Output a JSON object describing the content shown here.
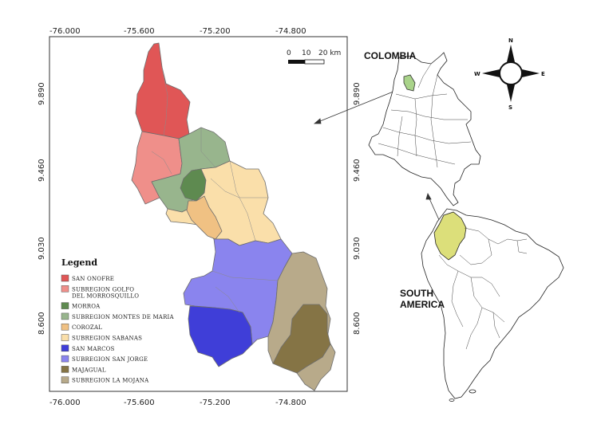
{
  "map": {
    "x_ticks": [
      "-76.000",
      "-75.600",
      "-75.200",
      "-74.800"
    ],
    "y_ticks": [
      "9.890",
      "9.460",
      "9.030",
      "8.600"
    ],
    "scale_bar": {
      "labels": [
        "0",
        "10",
        "20 km"
      ]
    },
    "legend": {
      "title": "Legend",
      "items": [
        {
          "label": "SAN ONOFRE",
          "color": "#e05656"
        },
        {
          "label": "SUBREGION GOLFO",
          "label2": "DEL MORROSQUILLO",
          "color": "#ef8f8a"
        },
        {
          "label": "MORROA",
          "color": "#5e8a50"
        },
        {
          "label": "SUBREGION MONTES DE MARIA",
          "color": "#98b58d"
        },
        {
          "label": "COROZAL",
          "color": "#f0c183"
        },
        {
          "label": "SUBREGION SABANAS",
          "color": "#fadfaa"
        },
        {
          "label": "SAN MARCOS",
          "color": "#3f3ed8"
        },
        {
          "label": "SUBREGION SAN JORGE",
          "color": "#8a84ee"
        },
        {
          "label": "MAJAGUAL",
          "color": "#857445"
        },
        {
          "label": "SUBREGION LA MOJANA",
          "color": "#b8aa8a"
        }
      ]
    }
  },
  "inset": {
    "colombia_label": "COLOMBIA",
    "south_america_label_line1": "SOUTH",
    "south_america_label_line2": "AMERICA",
    "highlight_sucre": "#a9d38a",
    "highlight_colombia": "#dcdf7a",
    "y_ticks": [
      "9.890",
      "9.460",
      "9.030",
      "8.600"
    ]
  },
  "compass": {
    "n": "N",
    "s": "S",
    "e": "E",
    "w": "W"
  }
}
